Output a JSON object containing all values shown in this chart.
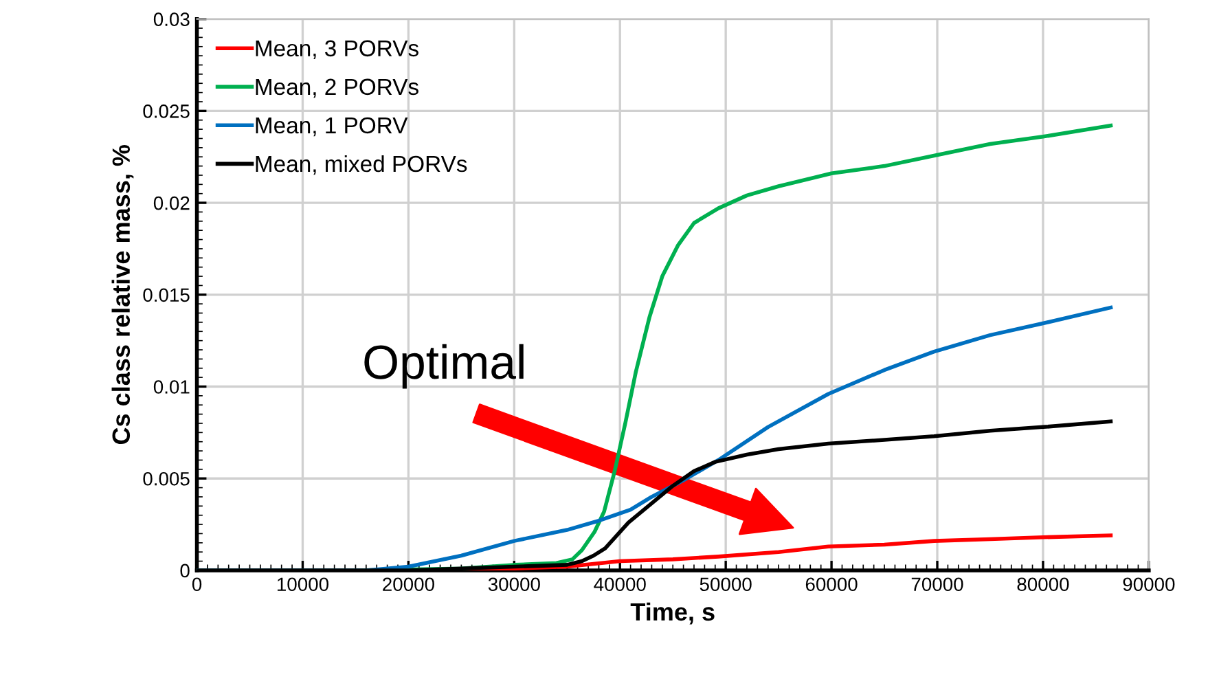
{
  "chart_data": {
    "type": "line",
    "xlabel": "Time, s",
    "ylabel": "Cs class relative mass, %",
    "xlim": [
      0,
      90000
    ],
    "ylim": [
      0,
      0.03
    ],
    "xticks": [
      0,
      10000,
      20000,
      30000,
      40000,
      50000,
      60000,
      70000,
      80000,
      90000
    ],
    "yticks": [
      0,
      0.005,
      0.01,
      0.015,
      0.02,
      0.025,
      0.03
    ],
    "grid": true,
    "legend": "top left",
    "marker": "none",
    "line_style": "solid",
    "annotations": [
      "Optimal"
    ],
    "series": [
      {
        "name": "Mean, 3 PORVs",
        "color": "#ff0000",
        "x": [
          0,
          25000,
          30000,
          35000,
          40000,
          45000,
          49300,
          55000,
          59700,
          65000,
          69700,
          75000,
          80000,
          86400
        ],
        "values": [
          0,
          0,
          0.0001,
          0.0002,
          0.0005,
          0.0006,
          0.00075,
          0.001,
          0.0013,
          0.0014,
          0.0016,
          0.0017,
          0.0018,
          0.0019
        ]
      },
      {
        "name": "Mean, 2 PORVs",
        "color": "#00b050",
        "x": [
          0,
          15000,
          25000,
          30000,
          34000,
          35500,
          36400,
          37600,
          38500,
          39500,
          40500,
          41500,
          42800,
          44000,
          45500,
          47000,
          49300,
          52000,
          55000,
          60000,
          65000,
          70000,
          75000,
          80000,
          86400
        ],
        "values": [
          0,
          0,
          0.0001,
          0.0003,
          0.0004,
          0.0006,
          0.0011,
          0.0021,
          0.0032,
          0.0054,
          0.008,
          0.0108,
          0.0138,
          0.016,
          0.0177,
          0.0189,
          0.0197,
          0.0204,
          0.0209,
          0.0216,
          0.022,
          0.0226,
          0.0232,
          0.0236,
          0.0242
        ]
      },
      {
        "name": "Mean, 1 PORV",
        "color": "#0070c0",
        "x": [
          0,
          16000,
          20000,
          25000,
          30000,
          35000,
          38000,
          41000,
          43000,
          46000,
          49300,
          54000,
          59700,
          65000,
          69700,
          75000,
          79700,
          86400
        ],
        "values": [
          0,
          0,
          0.0002,
          0.0008,
          0.0016,
          0.0022,
          0.0027,
          0.0033,
          0.004,
          0.0049,
          0.006,
          0.0078,
          0.0096,
          0.0109,
          0.0119,
          0.0128,
          0.0134,
          0.0143
        ]
      },
      {
        "name": "Mean, mixed PORVs",
        "color": "#000000",
        "x": [
          0,
          20000,
          25000,
          30000,
          35000,
          36400,
          37500,
          38600,
          39700,
          40800,
          42900,
          45000,
          47000,
          49000,
          52000,
          55000,
          59700,
          65000,
          69700,
          75000,
          80000,
          86400
        ],
        "values": [
          0,
          0,
          0.0001,
          0.0002,
          0.0003,
          0.0005,
          0.0008,
          0.0012,
          0.0019,
          0.0026,
          0.0036,
          0.0046,
          0.0054,
          0.0059,
          0.0063,
          0.0066,
          0.0069,
          0.0071,
          0.0073,
          0.0076,
          0.0078,
          0.0081
        ]
      }
    ]
  }
}
